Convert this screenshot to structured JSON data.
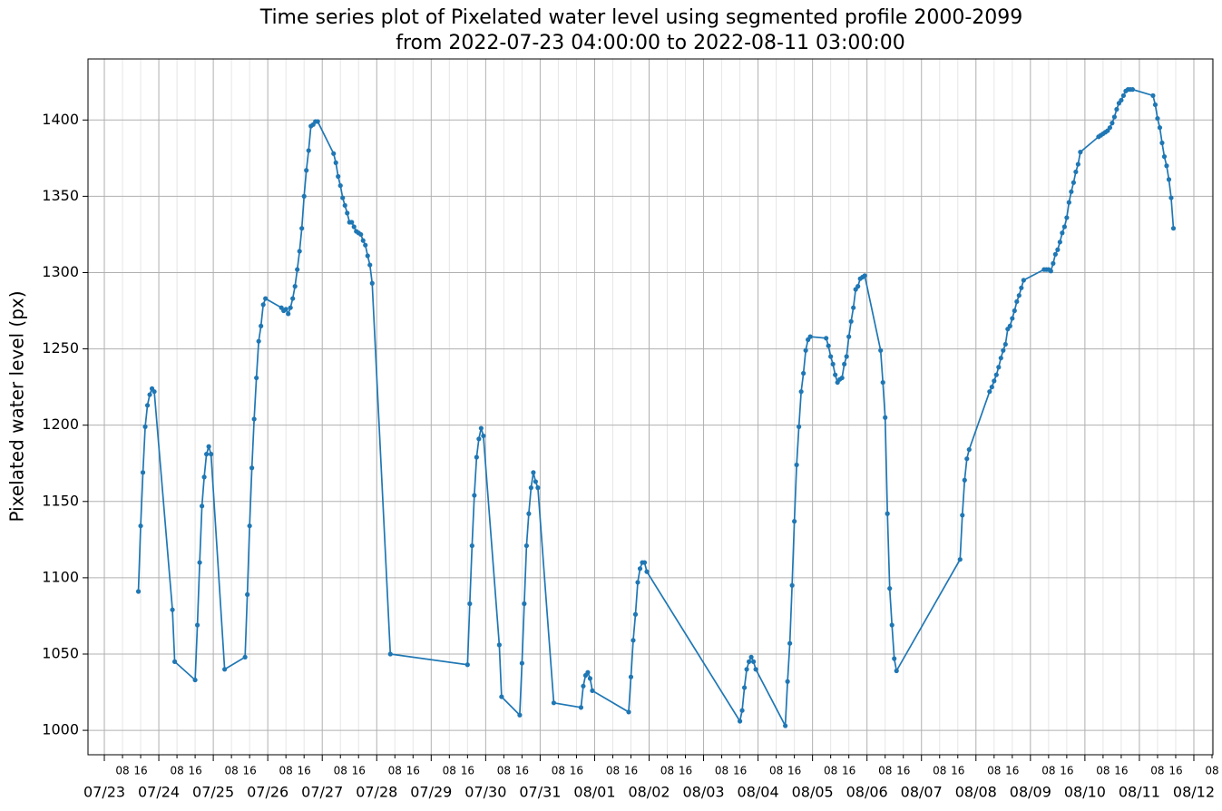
{
  "chart_data": {
    "type": "line",
    "title": [
      "Time series plot of Pixelated water level using segmented profile 2000-2099",
      "from 2022-07-23 04:00:00 to 2022-08-11 03:00:00"
    ],
    "ylabel": "Pixelated water level (px)",
    "xlim": [
      "2022-07-22T16:48",
      "2022-08-12T08:24"
    ],
    "ylim": [
      984,
      1440
    ],
    "yticks": [
      1000,
      1050,
      1100,
      1150,
      1200,
      1250,
      1300,
      1350,
      1400
    ],
    "grid": true,
    "xticks": [
      {
        "value": "2022-07-23T00:00",
        "label": "07/23"
      },
      {
        "value": "2022-07-24T00:00",
        "label": "07/24"
      },
      {
        "value": "2022-07-25T00:00",
        "label": "07/25"
      },
      {
        "value": "2022-07-26T00:00",
        "label": "07/26"
      },
      {
        "value": "2022-07-27T00:00",
        "label": "07/27"
      },
      {
        "value": "2022-07-28T00:00",
        "label": "07/28"
      },
      {
        "value": "2022-07-29T00:00",
        "label": "07/29"
      },
      {
        "value": "2022-07-30T00:00",
        "label": "07/30"
      },
      {
        "value": "2022-07-31T00:00",
        "label": "07/31"
      },
      {
        "value": "2022-08-01T00:00",
        "label": "08/01"
      },
      {
        "value": "2022-08-02T00:00",
        "label": "08/02"
      },
      {
        "value": "2022-08-03T00:00",
        "label": "08/03"
      },
      {
        "value": "2022-08-04T00:00",
        "label": "08/04"
      },
      {
        "value": "2022-08-05T00:00",
        "label": "08/05"
      },
      {
        "value": "2022-08-06T00:00",
        "label": "08/06"
      },
      {
        "value": "2022-08-07T00:00",
        "label": "08/07"
      },
      {
        "value": "2022-08-08T00:00",
        "label": "08/08"
      },
      {
        "value": "2022-08-09T00:00",
        "label": "08/09"
      },
      {
        "value": "2022-08-10T00:00",
        "label": "08/10"
      },
      {
        "value": "2022-08-11T00:00",
        "label": "08/11"
      },
      {
        "value": "2022-08-12T00:00",
        "label": "08/12"
      }
    ],
    "xminorticks": [
      {
        "value": "2022-07-23T08:00",
        "label": "08"
      },
      {
        "value": "2022-07-23T16:00",
        "label": "16"
      },
      {
        "value": "2022-07-24T08:00",
        "label": "08"
      },
      {
        "value": "2022-07-24T16:00",
        "label": "16"
      },
      {
        "value": "2022-07-25T08:00",
        "label": "08"
      },
      {
        "value": "2022-07-25T16:00",
        "label": "16"
      },
      {
        "value": "2022-07-26T08:00",
        "label": "08"
      },
      {
        "value": "2022-07-26T16:00",
        "label": "16"
      },
      {
        "value": "2022-07-27T08:00",
        "label": "08"
      },
      {
        "value": "2022-07-27T16:00",
        "label": "16"
      },
      {
        "value": "2022-07-28T08:00",
        "label": "08"
      },
      {
        "value": "2022-07-28T16:00",
        "label": "16"
      },
      {
        "value": "2022-07-29T08:00",
        "label": "08"
      },
      {
        "value": "2022-07-29T16:00",
        "label": "16"
      },
      {
        "value": "2022-07-30T08:00",
        "label": "08"
      },
      {
        "value": "2022-07-30T16:00",
        "label": "16"
      },
      {
        "value": "2022-07-31T08:00",
        "label": "08"
      },
      {
        "value": "2022-07-31T16:00",
        "label": "16"
      },
      {
        "value": "2022-08-01T08:00",
        "label": "08"
      },
      {
        "value": "2022-08-01T16:00",
        "label": "16"
      },
      {
        "value": "2022-08-02T08:00",
        "label": "08"
      },
      {
        "value": "2022-08-02T16:00",
        "label": "16"
      },
      {
        "value": "2022-08-03T08:00",
        "label": "08"
      },
      {
        "value": "2022-08-03T16:00",
        "label": "16"
      },
      {
        "value": "2022-08-04T08:00",
        "label": "08"
      },
      {
        "value": "2022-08-04T16:00",
        "label": "16"
      },
      {
        "value": "2022-08-05T08:00",
        "label": "08"
      },
      {
        "value": "2022-08-05T16:00",
        "label": "16"
      },
      {
        "value": "2022-08-06T08:00",
        "label": "08"
      },
      {
        "value": "2022-08-06T16:00",
        "label": "16"
      },
      {
        "value": "2022-08-07T08:00",
        "label": "08"
      },
      {
        "value": "2022-08-07T16:00",
        "label": "16"
      },
      {
        "value": "2022-08-08T08:00",
        "label": "08"
      },
      {
        "value": "2022-08-08T16:00",
        "label": "16"
      },
      {
        "value": "2022-08-09T08:00",
        "label": "08"
      },
      {
        "value": "2022-08-09T16:00",
        "label": "16"
      },
      {
        "value": "2022-08-10T08:00",
        "label": "08"
      },
      {
        "value": "2022-08-10T16:00",
        "label": "16"
      },
      {
        "value": "2022-08-11T08:00",
        "label": "08"
      },
      {
        "value": "2022-08-11T16:00",
        "label": "16"
      },
      {
        "value": "2022-08-12T08:00",
        "label": "08"
      }
    ],
    "x": [
      "2022-07-23T15:00",
      "2022-07-23T16:00",
      "2022-07-23T17:00",
      "2022-07-23T18:00",
      "2022-07-23T19:00",
      "2022-07-23T20:00",
      "2022-07-23T21:00",
      "2022-07-23T22:00",
      "2022-07-24T06:00",
      "2022-07-24T07:00",
      "2022-07-24T16:00",
      "2022-07-24T17:00",
      "2022-07-24T18:00",
      "2022-07-24T19:00",
      "2022-07-24T20:00",
      "2022-07-24T21:00",
      "2022-07-24T22:00",
      "2022-07-24T23:00",
      "2022-07-25T05:00",
      "2022-07-25T14:00",
      "2022-07-25T15:00",
      "2022-07-25T16:00",
      "2022-07-25T17:00",
      "2022-07-25T18:00",
      "2022-07-25T19:00",
      "2022-07-25T20:00",
      "2022-07-25T21:00",
      "2022-07-25T22:00",
      "2022-07-25T23:00",
      "2022-07-26T06:00",
      "2022-07-26T07:00",
      "2022-07-26T08:00",
      "2022-07-26T09:00",
      "2022-07-26T10:00",
      "2022-07-26T11:00",
      "2022-07-26T12:00",
      "2022-07-26T13:00",
      "2022-07-26T14:00",
      "2022-07-26T15:00",
      "2022-07-26T16:00",
      "2022-07-26T17:00",
      "2022-07-26T18:00",
      "2022-07-26T19:00",
      "2022-07-26T20:00",
      "2022-07-26T21:00",
      "2022-07-26T22:00",
      "2022-07-27T05:00",
      "2022-07-27T06:00",
      "2022-07-27T07:00",
      "2022-07-27T08:00",
      "2022-07-27T09:00",
      "2022-07-27T10:00",
      "2022-07-27T11:00",
      "2022-07-27T12:00",
      "2022-07-27T13:00",
      "2022-07-27T14:00",
      "2022-07-27T15:00",
      "2022-07-27T16:00",
      "2022-07-27T17:00",
      "2022-07-27T18:00",
      "2022-07-27T19:00",
      "2022-07-27T20:00",
      "2022-07-27T21:00",
      "2022-07-27T22:00",
      "2022-07-28T06:00",
      "2022-07-29T16:00",
      "2022-07-29T17:00",
      "2022-07-29T18:00",
      "2022-07-29T19:00",
      "2022-07-29T20:00",
      "2022-07-29T21:00",
      "2022-07-29T22:00",
      "2022-07-29T23:00",
      "2022-07-30T06:00",
      "2022-07-30T07:00",
      "2022-07-30T15:00",
      "2022-07-30T16:00",
      "2022-07-30T17:00",
      "2022-07-30T18:00",
      "2022-07-30T19:00",
      "2022-07-30T20:00",
      "2022-07-30T21:00",
      "2022-07-30T22:00",
      "2022-07-30T23:00",
      "2022-07-31T06:00",
      "2022-07-31T18:00",
      "2022-07-31T19:00",
      "2022-07-31T20:00",
      "2022-07-31T21:00",
      "2022-07-31T22:00",
      "2022-07-31T23:00",
      "2022-08-01T15:00",
      "2022-08-01T16:00",
      "2022-08-01T17:00",
      "2022-08-01T18:00",
      "2022-08-01T19:00",
      "2022-08-01T20:00",
      "2022-08-01T21:00",
      "2022-08-01T22:00",
      "2022-08-01T23:00",
      "2022-08-03T16:00",
      "2022-08-03T17:00",
      "2022-08-03T18:00",
      "2022-08-03T19:00",
      "2022-08-03T20:00",
      "2022-08-03T21:00",
      "2022-08-03T22:00",
      "2022-08-03T23:00",
      "2022-08-04T12:00",
      "2022-08-04T13:00",
      "2022-08-04T14:00",
      "2022-08-04T15:00",
      "2022-08-04T16:00",
      "2022-08-04T17:00",
      "2022-08-04T18:00",
      "2022-08-04T19:00",
      "2022-08-04T20:00",
      "2022-08-04T21:00",
      "2022-08-04T22:00",
      "2022-08-04T23:00",
      "2022-08-05T06:00",
      "2022-08-05T07:00",
      "2022-08-05T08:00",
      "2022-08-05T09:00",
      "2022-08-05T10:00",
      "2022-08-05T11:00",
      "2022-08-05T12:00",
      "2022-08-05T13:00",
      "2022-08-05T14:00",
      "2022-08-05T15:00",
      "2022-08-05T16:00",
      "2022-08-05T17:00",
      "2022-08-05T18:00",
      "2022-08-05T19:00",
      "2022-08-05T20:00",
      "2022-08-05T21:00",
      "2022-08-05T22:00",
      "2022-08-05T23:00",
      "2022-08-06T06:00",
      "2022-08-06T07:00",
      "2022-08-06T08:00",
      "2022-08-06T09:00",
      "2022-08-06T10:00",
      "2022-08-06T11:00",
      "2022-08-06T12:00",
      "2022-08-06T13:00",
      "2022-08-07T17:00",
      "2022-08-07T18:00",
      "2022-08-07T19:00",
      "2022-08-07T20:00",
      "2022-08-07T21:00",
      "2022-08-08T06:00",
      "2022-08-08T07:00",
      "2022-08-08T08:00",
      "2022-08-08T09:00",
      "2022-08-08T10:00",
      "2022-08-08T11:00",
      "2022-08-08T12:00",
      "2022-08-08T13:00",
      "2022-08-08T14:00",
      "2022-08-08T15:00",
      "2022-08-08T16:00",
      "2022-08-08T17:00",
      "2022-08-08T18:00",
      "2022-08-08T19:00",
      "2022-08-08T20:00",
      "2022-08-08T21:00",
      "2022-08-09T06:00",
      "2022-08-09T07:00",
      "2022-08-09T08:00",
      "2022-08-09T09:00",
      "2022-08-09T10:00",
      "2022-08-09T11:00",
      "2022-08-09T12:00",
      "2022-08-09T13:00",
      "2022-08-09T14:00",
      "2022-08-09T15:00",
      "2022-08-09T16:00",
      "2022-08-09T17:00",
      "2022-08-09T18:00",
      "2022-08-09T19:00",
      "2022-08-09T20:00",
      "2022-08-09T21:00",
      "2022-08-09T22:00",
      "2022-08-10T06:00",
      "2022-08-10T07:00",
      "2022-08-10T08:00",
      "2022-08-10T09:00",
      "2022-08-10T10:00",
      "2022-08-10T11:00",
      "2022-08-10T12:00",
      "2022-08-10T13:00",
      "2022-08-10T14:00",
      "2022-08-10T15:00",
      "2022-08-10T16:00",
      "2022-08-10T17:00",
      "2022-08-10T18:00",
      "2022-08-10T19:00",
      "2022-08-10T20:00",
      "2022-08-10T21:00",
      "2022-08-11T06:00",
      "2022-08-11T07:00",
      "2022-08-11T08:00",
      "2022-08-11T09:00",
      "2022-08-11T10:00",
      "2022-08-11T11:00",
      "2022-08-11T12:00",
      "2022-08-11T13:00",
      "2022-08-11T14:00",
      "2022-08-11T15:00"
    ],
    "series": [
      {
        "color": "#1f77b4",
        "values": [
          1091,
          1134,
          1169,
          1199,
          1213,
          1220,
          1224,
          1222,
          1079,
          1045,
          1033,
          1069,
          1110,
          1147,
          1166,
          1181,
          1186,
          1181,
          1040,
          1048,
          1089,
          1134,
          1172,
          1204,
          1231,
          1255,
          1265,
          1279,
          1283,
          1277,
          1275,
          1276,
          1273,
          1277,
          1283,
          1291,
          1302,
          1314,
          1329,
          1350,
          1367,
          1380,
          1396,
          1397,
          1399,
          1399,
          1378,
          1372,
          1363,
          1357,
          1349,
          1344,
          1339,
          1333,
          1333,
          1330,
          1327,
          1326,
          1325,
          1321,
          1318,
          1311,
          1305,
          1293,
          1050,
          1043,
          1083,
          1121,
          1154,
          1179,
          1191,
          1198,
          1193,
          1056,
          1022,
          1010,
          1044,
          1083,
          1121,
          1142,
          1159,
          1169,
          1163,
          1159,
          1018,
          1015,
          1029,
          1036,
          1038,
          1034,
          1026,
          1012,
          1035,
          1059,
          1076,
          1097,
          1106,
          1110,
          1110,
          1104,
          1006,
          1013,
          1028,
          1040,
          1045,
          1048,
          1045,
          1040,
          1003,
          1032,
          1057,
          1095,
          1137,
          1174,
          1199,
          1222,
          1234,
          1249,
          1256,
          1258,
          1257,
          1252,
          1245,
          1240,
          1233,
          1228,
          1230,
          1231,
          1240,
          1245,
          1258,
          1268,
          1277,
          1289,
          1291,
          1296,
          1297,
          1298,
          1249,
          1228,
          1205,
          1142,
          1093,
          1069,
          1047,
          1039,
          1112,
          1141,
          1164,
          1178,
          1184,
          1222,
          1225,
          1229,
          1233,
          1238,
          1244,
          1249,
          1253,
          1263,
          1265,
          1270,
          1275,
          1281,
          1285,
          1290,
          1295,
          1302,
          1302,
          1302,
          1301,
          1306,
          1312,
          1315,
          1320,
          1326,
          1330,
          1336,
          1346,
          1353,
          1359,
          1366,
          1371,
          1379,
          1389,
          1390,
          1391,
          1392,
          1393,
          1395,
          1398,
          1402,
          1407,
          1411,
          1413,
          1416,
          1419,
          1420,
          1420,
          1420,
          1416,
          1410,
          1401,
          1395,
          1385,
          1376,
          1370,
          1361,
          1349,
          1329
        ]
      }
    ]
  }
}
